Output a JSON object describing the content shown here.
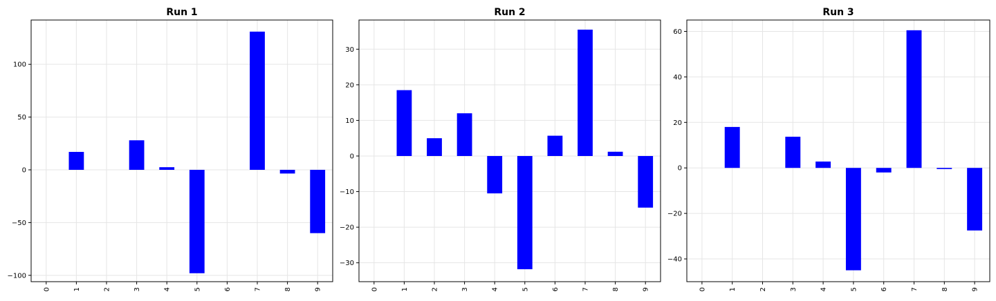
{
  "chart_data": [
    {
      "type": "bar",
      "title": "Run 1",
      "categories": [
        "0",
        "1",
        "2",
        "3",
        "4",
        "5",
        "6",
        "7",
        "8",
        "9"
      ],
      "values": [
        0,
        17,
        0,
        28,
        2.5,
        -98,
        0,
        131,
        -3.5,
        -60
      ],
      "ylim": [
        -106,
        142
      ],
      "yticks": [
        -100,
        -50,
        0,
        50,
        100
      ],
      "ytick_labels": [
        "−100",
        "−50",
        "0",
        "50",
        "100"
      ],
      "grid": true,
      "color": "#0000ff"
    },
    {
      "type": "bar",
      "title": "Run 2",
      "categories": [
        "0",
        "1",
        "2",
        "3",
        "4",
        "5",
        "6",
        "7",
        "8",
        "9"
      ],
      "values": [
        0,
        18.5,
        5,
        12,
        -10.5,
        -31.8,
        5.7,
        35.5,
        1.2,
        -14.5
      ],
      "ylim": [
        -35.3,
        38.2
      ],
      "yticks": [
        -30,
        -20,
        -10,
        0,
        10,
        20,
        30
      ],
      "ytick_labels": [
        "−30",
        "−20",
        "−10",
        "0",
        "10",
        "20",
        "30"
      ],
      "grid": true,
      "color": "#0000ff"
    },
    {
      "type": "bar",
      "title": "Run 3",
      "categories": [
        "0",
        "1",
        "2",
        "3",
        "4",
        "5",
        "6",
        "7",
        "8",
        "9"
      ],
      "values": [
        0,
        18,
        0,
        13.7,
        2.8,
        -45,
        -2,
        60.5,
        -0.5,
        -27.5
      ],
      "ylim": [
        -50,
        65
      ],
      "yticks": [
        -40,
        -20,
        0,
        20,
        40,
        60
      ],
      "ytick_labels": [
        "−40",
        "−20",
        "0",
        "20",
        "40",
        "60"
      ],
      "grid": true,
      "color": "#0000ff"
    }
  ]
}
